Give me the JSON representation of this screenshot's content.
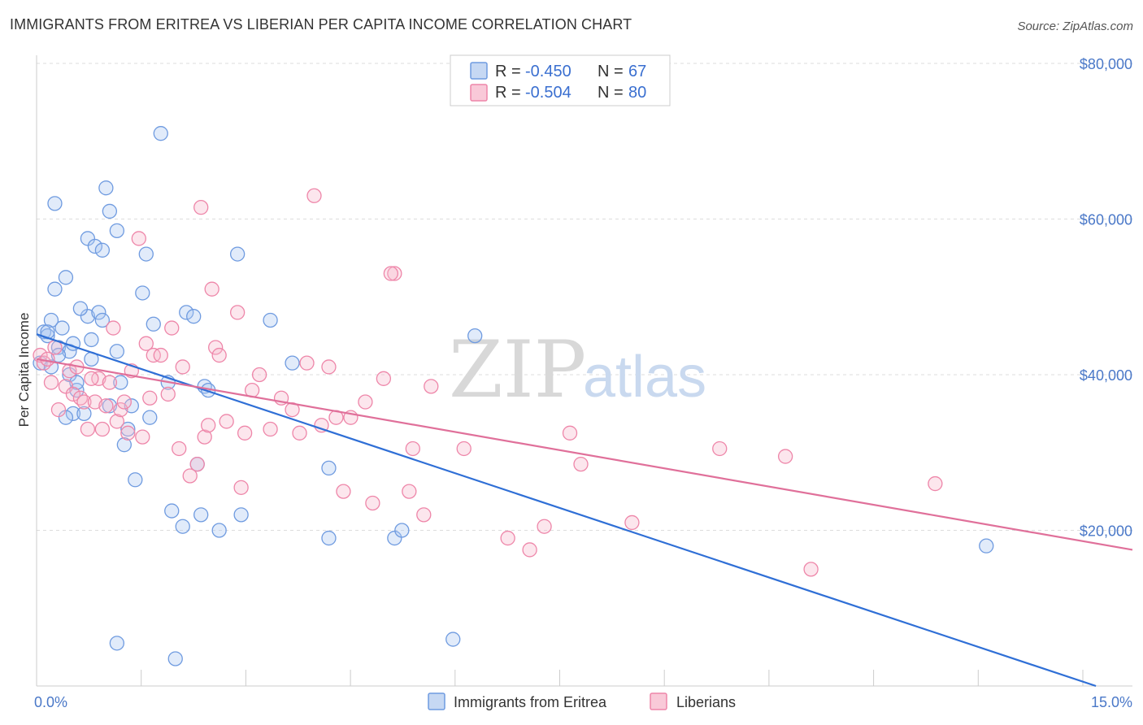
{
  "title": "IMMIGRANTS FROM ERITREA VS LIBERIAN PER CAPITA INCOME CORRELATION CHART",
  "source": "Source: ZipAtlas.com",
  "watermark": {
    "zip": "ZIP",
    "atlas": "atlas"
  },
  "legend_top": {
    "r_label": "R =",
    "n_label": "N =",
    "series": [
      {
        "r": "-0.450",
        "n": "67",
        "color": "#6f9be0",
        "fill": "#c6d8f3"
      },
      {
        "r": "-0.504",
        "n": "80",
        "color": "#ee86a9",
        "fill": "#f9c9d8"
      }
    ]
  },
  "chart_data": {
    "type": "scatter",
    "title": "IMMIGRANTS FROM ERITREA VS LIBERIAN PER CAPITA INCOME CORRELATION CHART",
    "xlabel": "",
    "ylabel": "Per Capita Income",
    "xlim": [
      0,
      15
    ],
    "ylim": [
      0,
      80000
    ],
    "x_tick_labels": [
      "0.0%",
      "15.0%"
    ],
    "y_ticks": [
      20000,
      40000,
      60000,
      80000
    ],
    "y_tick_labels": [
      "$20,000",
      "$40,000",
      "$60,000",
      "$80,000"
    ],
    "grid": true,
    "legend_position": "top-center and bottom",
    "series": [
      {
        "name": "Immigrants from Eritrea",
        "color": "#6f9be0",
        "line_color": "#2f6fd6",
        "trend": {
          "x": [
            0.0,
            14.5
          ],
          "y": [
            45200,
            0
          ]
        },
        "points": [
          [
            0.05,
            41500
          ],
          [
            0.1,
            45500
          ],
          [
            0.15,
            45000
          ],
          [
            0.2,
            47000
          ],
          [
            0.25,
            62000
          ],
          [
            0.25,
            51000
          ],
          [
            0.3,
            43500
          ],
          [
            0.35,
            46000
          ],
          [
            0.4,
            52500
          ],
          [
            0.45,
            40000
          ],
          [
            0.45,
            43000
          ],
          [
            0.5,
            35000
          ],
          [
            0.55,
            38000
          ],
          [
            0.55,
            39000
          ],
          [
            0.7,
            57500
          ],
          [
            0.7,
            47500
          ],
          [
            0.75,
            44500
          ],
          [
            0.75,
            42000
          ],
          [
            0.8,
            56500
          ],
          [
            0.85,
            48000
          ],
          [
            0.9,
            56000
          ],
          [
            0.9,
            47000
          ],
          [
            0.95,
            64000
          ],
          [
            1.0,
            61000
          ],
          [
            1.1,
            58500
          ],
          [
            1.1,
            43000
          ],
          [
            1.15,
            39000
          ],
          [
            1.2,
            31000
          ],
          [
            1.25,
            33000
          ],
          [
            1.3,
            36000
          ],
          [
            1.35,
            26500
          ],
          [
            1.45,
            50500
          ],
          [
            1.5,
            55500
          ],
          [
            1.6,
            46500
          ],
          [
            1.7,
            71000
          ],
          [
            1.8,
            39000
          ],
          [
            1.85,
            22500
          ],
          [
            2.0,
            20500
          ],
          [
            2.05,
            48000
          ],
          [
            2.15,
            47500
          ],
          [
            2.2,
            28500
          ],
          [
            2.25,
            22000
          ],
          [
            2.3,
            38500
          ],
          [
            2.5,
            20000
          ],
          [
            2.75,
            55500
          ],
          [
            2.8,
            22000
          ],
          [
            3.2,
            47000
          ],
          [
            3.5,
            41500
          ],
          [
            4.0,
            28000
          ],
          [
            4.0,
            19000
          ],
          [
            4.9,
            19000
          ],
          [
            5.0,
            20000
          ],
          [
            5.7,
            6000
          ],
          [
            6.0,
            45000
          ],
          [
            13.0,
            18000
          ],
          [
            1.1,
            5500
          ],
          [
            1.9,
            3500
          ],
          [
            0.65,
            35000
          ],
          [
            0.3,
            42500
          ],
          [
            0.6,
            48500
          ],
          [
            0.4,
            34500
          ],
          [
            0.2,
            41000
          ],
          [
            0.5,
            44000
          ],
          [
            1.0,
            36000
          ],
          [
            1.55,
            34500
          ],
          [
            0.15,
            45500
          ],
          [
            2.35,
            38000
          ]
        ]
      },
      {
        "name": "Liberians",
        "color": "#ee86a9",
        "line_color": "#e0709a",
        "trend": {
          "x": [
            0.0,
            15.0
          ],
          "y": [
            42000,
            17500
          ]
        },
        "points": [
          [
            0.05,
            42500
          ],
          [
            0.1,
            41500
          ],
          [
            0.15,
            42000
          ],
          [
            0.2,
            39000
          ],
          [
            0.3,
            35500
          ],
          [
            0.4,
            38500
          ],
          [
            0.45,
            40500
          ],
          [
            0.5,
            37500
          ],
          [
            0.55,
            41000
          ],
          [
            0.6,
            37000
          ],
          [
            0.65,
            36500
          ],
          [
            0.7,
            33000
          ],
          [
            0.8,
            36500
          ],
          [
            0.85,
            39500
          ],
          [
            0.9,
            33000
          ],
          [
            0.95,
            36000
          ],
          [
            1.0,
            39000
          ],
          [
            1.05,
            46000
          ],
          [
            1.1,
            34000
          ],
          [
            1.15,
            35500
          ],
          [
            1.2,
            36500
          ],
          [
            1.3,
            40500
          ],
          [
            1.4,
            57500
          ],
          [
            1.45,
            32000
          ],
          [
            1.5,
            44000
          ],
          [
            1.55,
            37000
          ],
          [
            1.6,
            42500
          ],
          [
            1.7,
            42500
          ],
          [
            1.8,
            37500
          ],
          [
            1.85,
            46000
          ],
          [
            1.95,
            30500
          ],
          [
            2.0,
            41000
          ],
          [
            2.1,
            27000
          ],
          [
            2.2,
            28500
          ],
          [
            2.25,
            61500
          ],
          [
            2.3,
            32000
          ],
          [
            2.4,
            51000
          ],
          [
            2.45,
            43500
          ],
          [
            2.5,
            42500
          ],
          [
            2.6,
            34000
          ],
          [
            2.75,
            48000
          ],
          [
            2.8,
            25500
          ],
          [
            2.85,
            32500
          ],
          [
            2.95,
            38000
          ],
          [
            3.05,
            40000
          ],
          [
            3.2,
            33000
          ],
          [
            3.35,
            37000
          ],
          [
            3.5,
            35500
          ],
          [
            3.6,
            32500
          ],
          [
            3.7,
            41500
          ],
          [
            3.8,
            63000
          ],
          [
            3.9,
            33500
          ],
          [
            4.0,
            41000
          ],
          [
            4.1,
            34500
          ],
          [
            4.2,
            25000
          ],
          [
            4.3,
            34500
          ],
          [
            4.5,
            36500
          ],
          [
            4.6,
            23500
          ],
          [
            4.75,
            39500
          ],
          [
            4.9,
            53000
          ],
          [
            5.1,
            25000
          ],
          [
            5.15,
            30500
          ],
          [
            5.3,
            22000
          ],
          [
            5.4,
            38500
          ],
          [
            5.85,
            30500
          ],
          [
            6.45,
            19000
          ],
          [
            6.75,
            17500
          ],
          [
            6.95,
            20500
          ],
          [
            7.3,
            32500
          ],
          [
            7.45,
            28500
          ],
          [
            8.15,
            21000
          ],
          [
            9.35,
            30500
          ],
          [
            10.25,
            29500
          ],
          [
            10.6,
            15000
          ],
          [
            12.3,
            26000
          ],
          [
            0.25,
            43500
          ],
          [
            1.25,
            32500
          ],
          [
            2.35,
            33500
          ],
          [
            4.85,
            53000
          ],
          [
            0.75,
            39500
          ]
        ]
      }
    ]
  },
  "legend_bottom": [
    {
      "label": "Immigrants from Eritrea",
      "color": "#6f9be0",
      "fill": "#c6d8f3"
    },
    {
      "label": "Liberians",
      "color": "#ee86a9",
      "fill": "#f9c9d8"
    }
  ]
}
